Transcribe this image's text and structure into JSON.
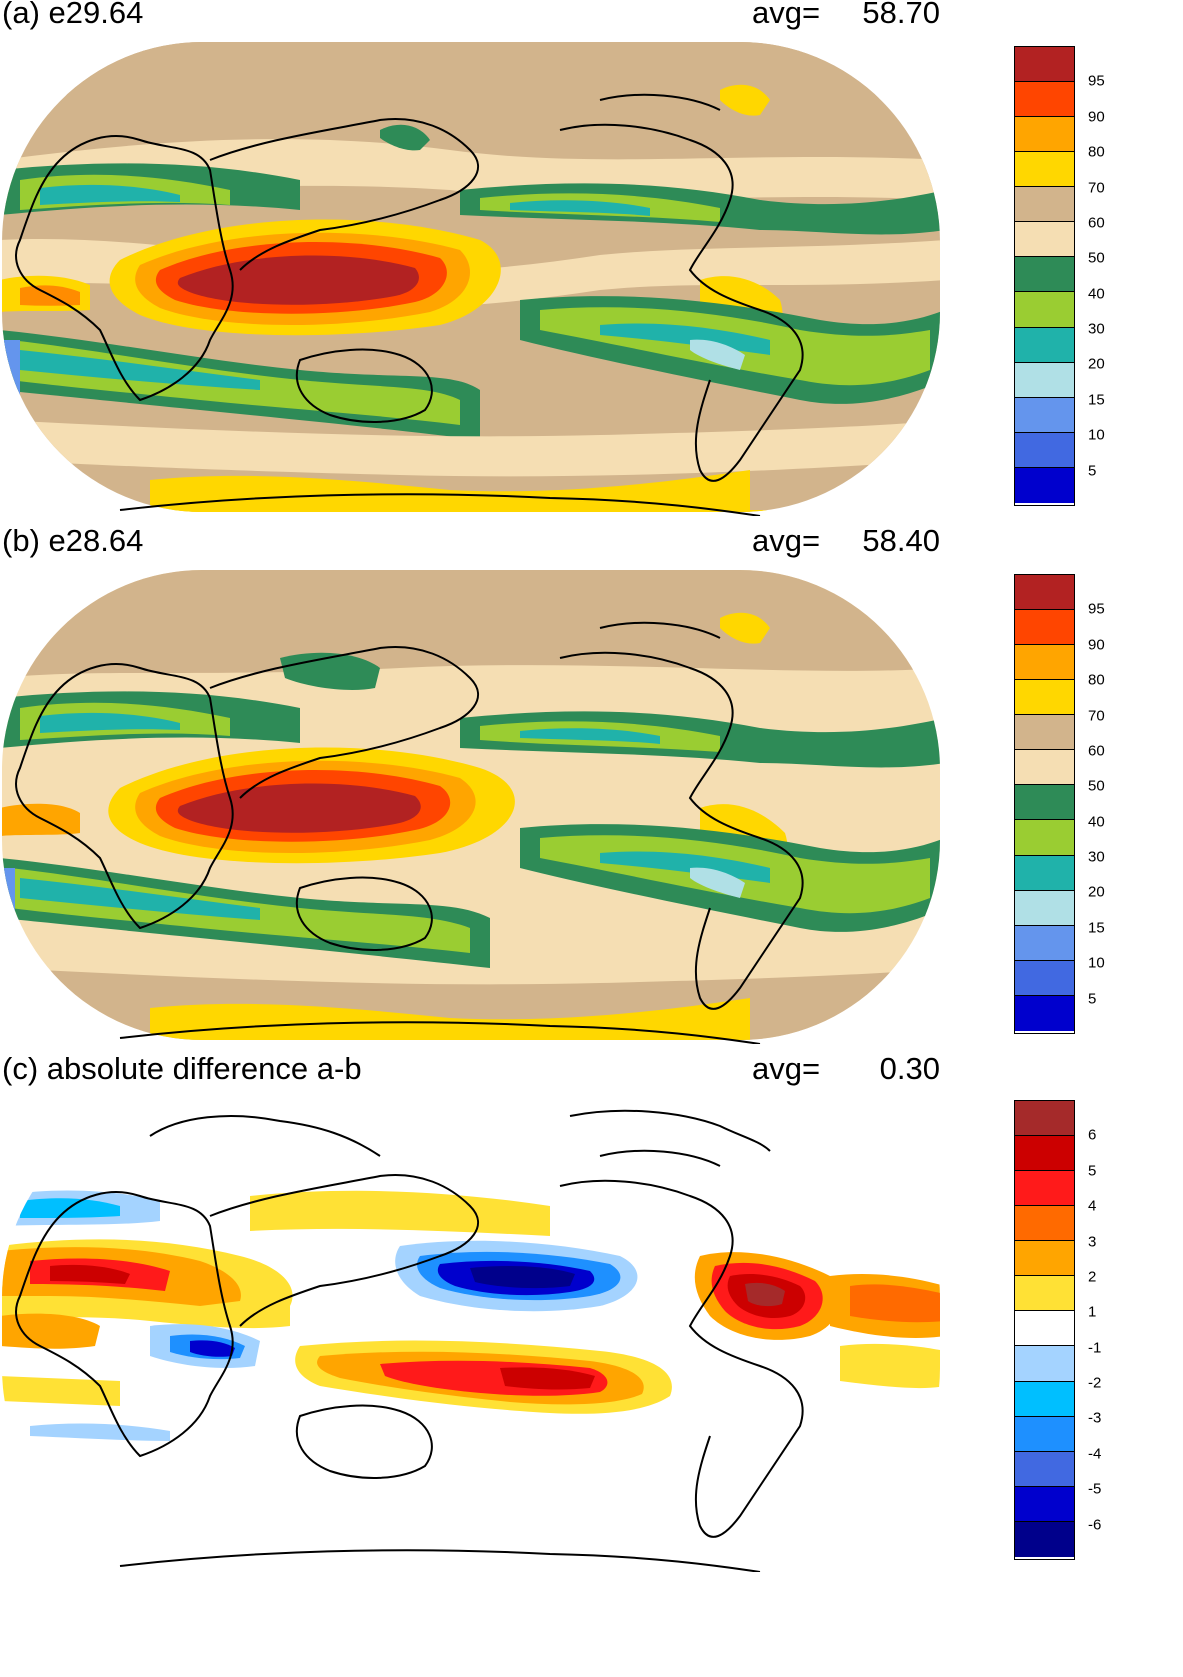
{
  "panels": [
    {
      "id": "a",
      "title": "(a) e29.64",
      "avg_label": "avg=",
      "avg_value": "58.70",
      "colorbar": {
        "colors": [
          "#b22222",
          "#ff4500",
          "#ffa500",
          "#ffd700",
          "#d2b48c",
          "#f5deb3",
          "#2e8b57",
          "#9acd32",
          "#20b2aa",
          "#b0e0e6",
          "#6495ed",
          "#4169e1",
          "#0000cd"
        ],
        "labels": [
          "95",
          "90",
          "80",
          "70",
          "60",
          "50",
          "40",
          "30",
          "20",
          "15",
          "10",
          "5"
        ]
      }
    },
    {
      "id": "b",
      "title": "(b) e28.64",
      "avg_label": "avg=",
      "avg_value": "58.40",
      "colorbar": {
        "colors": [
          "#b22222",
          "#ff4500",
          "#ffa500",
          "#ffd700",
          "#d2b48c",
          "#f5deb3",
          "#2e8b57",
          "#9acd32",
          "#20b2aa",
          "#b0e0e6",
          "#6495ed",
          "#4169e1",
          "#0000cd"
        ],
        "labels": [
          "95",
          "90",
          "80",
          "70",
          "60",
          "50",
          "40",
          "30",
          "20",
          "15",
          "10",
          "5"
        ]
      }
    },
    {
      "id": "c",
      "title": "(c) absolute difference a-b",
      "avg_label": "avg=",
      "avg_value": "0.30",
      "colorbar": {
        "colors": [
          "#a52a2a",
          "#cc0000",
          "#ff1a1a",
          "#ff6a00",
          "#ffa500",
          "#ffe135",
          "#ffffff",
          "#a4d3ff",
          "#00bfff",
          "#1e90ff",
          "#4169e1",
          "#0000cd",
          "#00008b"
        ],
        "labels": [
          "6",
          "5",
          "4",
          "3",
          "2",
          "1",
          "-1",
          "-2",
          "-3",
          "-4",
          "-5",
          "-6"
        ]
      }
    }
  ]
}
